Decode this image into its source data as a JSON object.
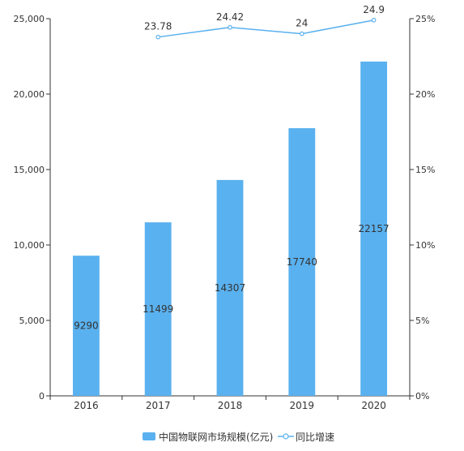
{
  "chart_data": {
    "type": "bar",
    "categories": [
      "2016",
      "2017",
      "2018",
      "2019",
      "2020"
    ],
    "series": [
      {
        "name": "中国物联网市场规模(亿元)",
        "type": "bar",
        "axis": "left",
        "values": [
          9290,
          11499,
          14307,
          17740,
          22157
        ],
        "labels": [
          "9290",
          "11499",
          "14307",
          "17740",
          "22157"
        ]
      },
      {
        "name": "同比增速",
        "type": "line",
        "axis": "right",
        "values": [
          null,
          23.78,
          24.42,
          24,
          24.9
        ],
        "labels": [
          "",
          "23.78",
          "24.42",
          "24",
          "24.9"
        ]
      }
    ],
    "left_axis": {
      "ylim": [
        0,
        25000
      ],
      "ticks": [
        0,
        5000,
        10000,
        15000,
        20000,
        25000
      ],
      "tick_labels": [
        "0",
        "5,000",
        "10,000",
        "15,000",
        "20,000",
        "25,000"
      ]
    },
    "right_axis": {
      "ylim": [
        0,
        25
      ],
      "ticks": [
        0,
        5,
        10,
        15,
        20,
        25
      ],
      "tick_labels": [
        "0%",
        "5%",
        "10%",
        "15%",
        "20%",
        "25%"
      ]
    },
    "legend_position": "bottom",
    "grid": false,
    "colors": {
      "bar": "#5ab1ef",
      "line": "#5ab1ef",
      "axis": "#333333"
    }
  }
}
